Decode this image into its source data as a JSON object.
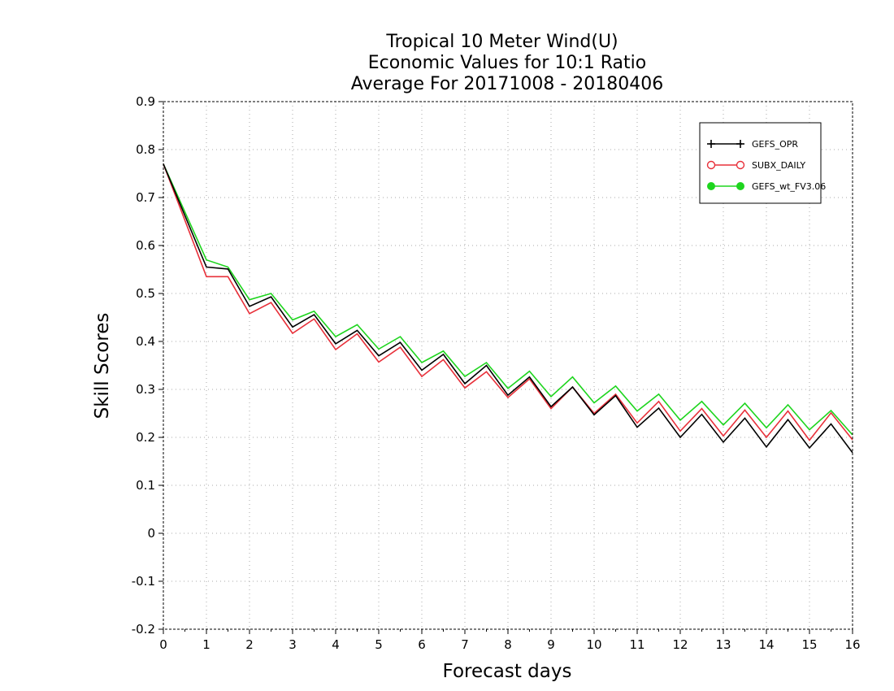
{
  "chart_data": {
    "type": "line",
    "title_lines": [
      "Tropical 10 Meter Wind(U)",
      "Economic Values for 10:1 Ratio",
      "Average For 20171008 - 20180406"
    ],
    "xlabel": "Forecast days",
    "ylabel": "Skill Scores",
    "xlim": [
      0,
      16
    ],
    "ylim": [
      -0.2,
      0.9
    ],
    "x_ticks": [
      "0",
      "1",
      "2",
      "3",
      "4",
      "5",
      "6",
      "7",
      "8",
      "9",
      "10",
      "11",
      "12",
      "13",
      "14",
      "15",
      "16"
    ],
    "y_ticks": [
      "0.9",
      "0.8",
      "0.7",
      "0.6",
      "0.5",
      "0.4",
      "0.3",
      "0.2",
      "0.1",
      "0",
      "-0.1",
      "-0.2"
    ],
    "grid": true,
    "legend_position": "top-right",
    "x": [
      0,
      1,
      1.5,
      2,
      2.5,
      3,
      3.5,
      4,
      4.5,
      5,
      5.5,
      6,
      6.5,
      7,
      7.5,
      8,
      8.5,
      9,
      9.5,
      10,
      10.5,
      11,
      11.5,
      12,
      12.5,
      13,
      13.5,
      14,
      14.5,
      15,
      15.5,
      16
    ],
    "series": [
      {
        "name": "GEFS_OPR",
        "color": "#000000",
        "marker": "plus",
        "values": [
          0.77,
          0.555,
          0.551,
          0.473,
          0.493,
          0.43,
          0.456,
          0.395,
          0.423,
          0.37,
          0.398,
          0.34,
          0.373,
          0.312,
          0.35,
          0.288,
          0.326,
          0.264,
          0.305,
          0.247,
          0.287,
          0.221,
          0.261,
          0.2,
          0.248,
          0.19,
          0.24,
          0.18,
          0.237,
          0.178,
          0.228,
          0.168
        ]
      },
      {
        "name": "SUBX_DAILY",
        "color": "#e8303a",
        "marker": "open-circle",
        "values": [
          0.77,
          0.535,
          0.535,
          0.458,
          0.481,
          0.417,
          0.447,
          0.383,
          0.416,
          0.357,
          0.388,
          0.327,
          0.362,
          0.303,
          0.337,
          0.283,
          0.322,
          0.26,
          0.305,
          0.25,
          0.29,
          0.23,
          0.275,
          0.213,
          0.26,
          0.203,
          0.257,
          0.2,
          0.255,
          0.194,
          0.251,
          0.195
        ]
      },
      {
        "name": "GEFS_wt_FV3.06",
        "color": "#1ed51e",
        "marker": "filled-circle",
        "values": [
          0.77,
          0.57,
          0.555,
          0.487,
          0.5,
          0.445,
          0.463,
          0.41,
          0.435,
          0.384,
          0.41,
          0.356,
          0.38,
          0.327,
          0.356,
          0.302,
          0.338,
          0.285,
          0.326,
          0.272,
          0.307,
          0.255,
          0.29,
          0.236,
          0.275,
          0.226,
          0.271,
          0.22,
          0.268,
          0.216,
          0.256,
          0.205
        ]
      }
    ]
  }
}
